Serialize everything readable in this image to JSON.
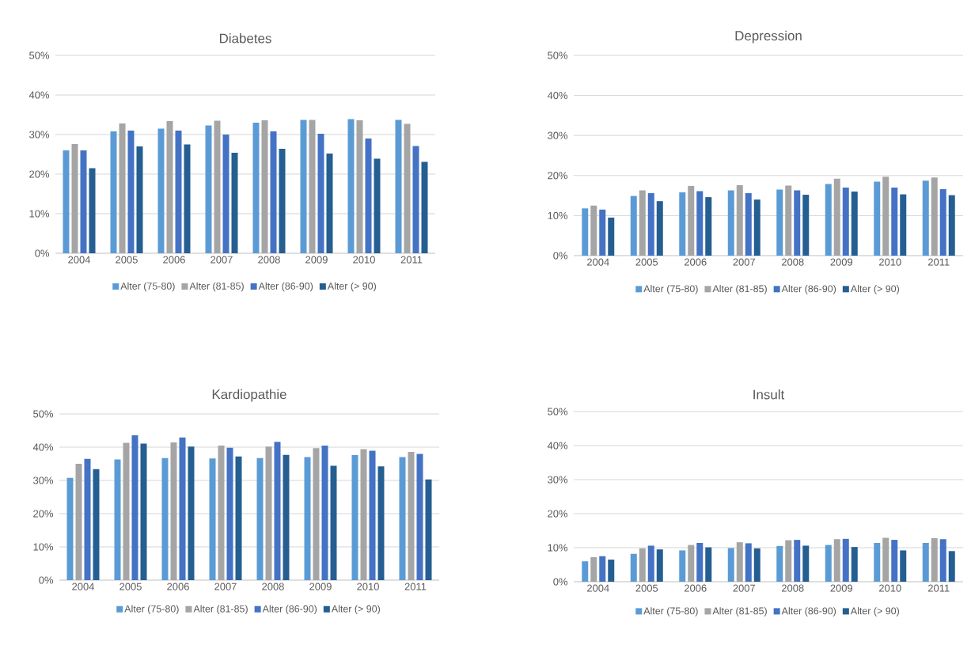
{
  "chart_data": [
    {
      "type": "bar",
      "title": "Diabetes",
      "categories": [
        "2004",
        "2005",
        "2006",
        "2007",
        "2008",
        "2009",
        "2010",
        "2011"
      ],
      "ylim": [
        0,
        50
      ],
      "yticks": [
        {
          "value": 0,
          "label": "0%"
        },
        {
          "value": 10,
          "label": "10%"
        },
        {
          "value": 20,
          "label": "20%"
        },
        {
          "value": 30,
          "label": "30%"
        },
        {
          "value": 40,
          "label": "40%"
        },
        {
          "value": 50,
          "label": "50%"
        }
      ],
      "grid": "y",
      "legend": "bottom",
      "series": [
        {
          "name": "Alter (75-80)",
          "color": "#5b9bd5",
          "values": [
            26,
            30.8,
            31.5,
            32.3,
            33,
            33.7,
            33.9,
            33.7
          ]
        },
        {
          "name": "Alter (81-85)",
          "color": "#a5a5a5",
          "values": [
            27.6,
            32.8,
            33.4,
            33.5,
            33.6,
            33.7,
            33.6,
            32.7
          ]
        },
        {
          "name": "Alter (86-90)",
          "color": "#4472c4",
          "values": [
            26,
            31,
            31,
            30,
            30.8,
            30.2,
            29,
            27.1
          ]
        },
        {
          "name": "Alter (> 90)",
          "color": "#255e91",
          "values": [
            21.5,
            27,
            27.5,
            25.4,
            26.4,
            25.2,
            23.9,
            23.1
          ]
        }
      ]
    },
    {
      "type": "bar",
      "title": "Depression",
      "categories": [
        "2004",
        "2005",
        "2006",
        "2007",
        "2008",
        "2009",
        "2010",
        "2011"
      ],
      "ylim": [
        0,
        50
      ],
      "yticks": [
        {
          "value": 0,
          "label": "0%"
        },
        {
          "value": 10,
          "label": "10%"
        },
        {
          "value": 20,
          "label": "20%"
        },
        {
          "value": 30,
          "label": "30%"
        },
        {
          "value": 40,
          "label": "40%"
        },
        {
          "value": 50,
          "label": "50%"
        }
      ],
      "grid": "y",
      "legend": "bottom",
      "series": [
        {
          "name": "Alter (75-80)",
          "color": "#5b9bd5",
          "values": [
            11.8,
            14.9,
            15.8,
            16.3,
            16.5,
            17.9,
            18.5,
            18.7
          ]
        },
        {
          "name": "Alter (81-85)",
          "color": "#a5a5a5",
          "values": [
            12.5,
            16.3,
            17.4,
            17.6,
            17.5,
            19.2,
            19.7,
            19.5
          ]
        },
        {
          "name": "Alter (86-90)",
          "color": "#4472c4",
          "values": [
            11.5,
            15.6,
            16.1,
            15.6,
            16.3,
            17,
            17,
            16.6
          ]
        },
        {
          "name": "Alter (> 90)",
          "color": "#255e91",
          "values": [
            9.5,
            13.6,
            14.6,
            14,
            15.2,
            16,
            15.3,
            15.1
          ]
        }
      ]
    },
    {
      "type": "bar",
      "title": "Kardiopathie",
      "categories": [
        "2004",
        "2005",
        "2006",
        "2007",
        "2008",
        "2009",
        "2010",
        "2011"
      ],
      "ylim": [
        0,
        50
      ],
      "yticks": [
        {
          "value": 0,
          "label": "0%"
        },
        {
          "value": 10,
          "label": "10%"
        },
        {
          "value": 20,
          "label": "20%"
        },
        {
          "value": 30,
          "label": "30%"
        },
        {
          "value": 40,
          "label": "40%"
        },
        {
          "value": 50,
          "label": "50%"
        }
      ],
      "grid": "y",
      "legend": "bottom",
      "series": [
        {
          "name": "Alter (75-80)",
          "color": "#5b9bd5",
          "values": [
            30.8,
            36.3,
            36.7,
            36.6,
            36.7,
            37,
            37.6,
            37
          ]
        },
        {
          "name": "Alter (81-85)",
          "color": "#a5a5a5",
          "values": [
            35,
            41.3,
            41.4,
            40.5,
            40.2,
            39.7,
            39.4,
            38.6
          ]
        },
        {
          "name": "Alter (86-90)",
          "color": "#4472c4",
          "values": [
            36.5,
            43.6,
            42.9,
            39.8,
            41.6,
            40.5,
            38.9,
            38
          ]
        },
        {
          "name": "Alter (> 90)",
          "color": "#255e91",
          "values": [
            33.4,
            41.1,
            40.2,
            37.2,
            37.7,
            34.4,
            34.2,
            30.3
          ]
        }
      ]
    },
    {
      "type": "bar",
      "title": "Insult",
      "categories": [
        "2004",
        "2005",
        "2006",
        "2007",
        "2008",
        "2009",
        "2010",
        "2011"
      ],
      "ylim": [
        0,
        50
      ],
      "yticks": [
        {
          "value": 0,
          "label": "0%"
        },
        {
          "value": 10,
          "label": "10%"
        },
        {
          "value": 20,
          "label": "20%"
        },
        {
          "value": 30,
          "label": "30%"
        },
        {
          "value": 40,
          "label": "40%"
        },
        {
          "value": 50,
          "label": "50%"
        }
      ],
      "grid": "y",
      "legend": "bottom",
      "series": [
        {
          "name": "Alter (75-80)",
          "color": "#5b9bd5",
          "values": [
            6,
            8.2,
            9.2,
            9.9,
            10.5,
            10.8,
            11.4,
            11.4
          ]
        },
        {
          "name": "Alter (81-85)",
          "color": "#a5a5a5",
          "values": [
            7.2,
            9.8,
            10.8,
            11.6,
            12.2,
            12.5,
            12.9,
            12.8
          ]
        },
        {
          "name": "Alter (86-90)",
          "color": "#4472c4",
          "values": [
            7.5,
            10.6,
            11.4,
            11.3,
            12.3,
            12.6,
            12.3,
            12.5
          ]
        },
        {
          "name": "Alter (> 90)",
          "color": "#255e91",
          "values": [
            6.5,
            9.5,
            10.1,
            9.8,
            10.6,
            10.2,
            9.2,
            9
          ]
        }
      ]
    }
  ]
}
